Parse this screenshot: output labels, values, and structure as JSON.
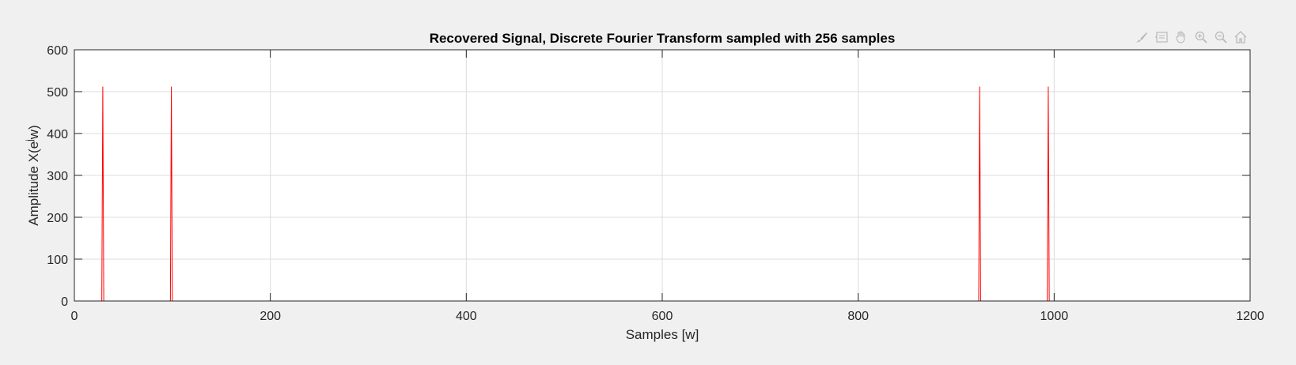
{
  "chart_data": {
    "type": "line",
    "title": "Recovered Signal, Discrete Fourier Transform sampled with 256 samples",
    "xlabel": "Samples [w]",
    "ylabel_prefix": "Amplitude X(e",
    "ylabel_sup": "j",
    "ylabel_suffix": "w)",
    "xlim": [
      0,
      1200
    ],
    "ylim": [
      0,
      600
    ],
    "xticks": [
      "0",
      "200",
      "400",
      "600",
      "800",
      "1000",
      "1200"
    ],
    "yticks": [
      "0",
      "100",
      "200",
      "300",
      "400",
      "500",
      "600"
    ],
    "grid": true,
    "series": [
      {
        "color": "#ff0000",
        "x": [
          0,
          27,
          28,
          29,
          30,
          31,
          97,
          98,
          99,
          100,
          101,
          922,
          923,
          924,
          925,
          926,
          992,
          993,
          994,
          995,
          996,
          1023
        ],
        "y": [
          0,
          0,
          0,
          512,
          0,
          0,
          0,
          0,
          512,
          0,
          0,
          0,
          0,
          512,
          0,
          0,
          0,
          0,
          512,
          0,
          0,
          0
        ]
      }
    ]
  },
  "toolbar": {
    "icons": [
      "brush-icon",
      "data-tip-icon",
      "pan-icon",
      "zoom-in-icon",
      "zoom-out-icon",
      "home-icon"
    ]
  }
}
